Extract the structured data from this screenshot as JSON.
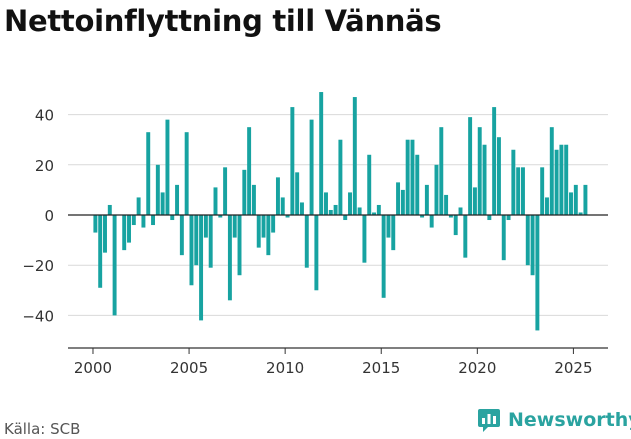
{
  "title": "Nettoinflyttning till Vännäs",
  "source": "Källa: SCB",
  "brand": {
    "name": "Newsworthy",
    "icon": "bar-chart-logo-icon"
  },
  "colors": {
    "bar": "#17a3a1",
    "grid": "#d9d9d9",
    "zero_line": "#222222",
    "axis": "#333333",
    "tick_text": "#333333"
  },
  "chart_data": {
    "type": "bar",
    "title": "Nettoinflyttning till Vännäs",
    "xlabel": "",
    "ylabel": "",
    "xlim": [
      1998.7,
      2026.8
    ],
    "ylim": [
      -53,
      53
    ],
    "x_ticks": [
      2000,
      2005,
      2010,
      2015,
      2020,
      2025
    ],
    "x_tick_labels": [
      "2000",
      "2005",
      "2010",
      "2015",
      "2020",
      "2025"
    ],
    "y_ticks": [
      -40,
      -20,
      0,
      20,
      40
    ],
    "y_tick_labels": [
      "−40",
      "−20",
      "0",
      "20",
      "40"
    ],
    "grid": true,
    "period": "quarterly",
    "x": [
      2000.125,
      2000.375,
      2000.625,
      2000.875,
      2001.125,
      2001.375,
      2001.625,
      2001.875,
      2002.125,
      2002.375,
      2002.625,
      2002.875,
      2003.125,
      2003.375,
      2003.625,
      2003.875,
      2004.125,
      2004.375,
      2004.625,
      2004.875,
      2005.125,
      2005.375,
      2005.625,
      2005.875,
      2006.125,
      2006.375,
      2006.625,
      2006.875,
      2007.125,
      2007.375,
      2007.625,
      2007.875,
      2008.125,
      2008.375,
      2008.625,
      2008.875,
      2009.125,
      2009.375,
      2009.625,
      2009.875,
      2010.125,
      2010.375,
      2010.625,
      2010.875,
      2011.125,
      2011.375,
      2011.625,
      2011.875,
      2012.125,
      2012.375,
      2012.625,
      2012.875,
      2013.125,
      2013.375,
      2013.625,
      2013.875,
      2014.125,
      2014.375,
      2014.625,
      2014.875,
      2015.125,
      2015.375,
      2015.625,
      2015.875,
      2016.125,
      2016.375,
      2016.625,
      2016.875,
      2017.125,
      2017.375,
      2017.625,
      2017.875,
      2018.125,
      2018.375,
      2018.625,
      2018.875,
      2019.125,
      2019.375,
      2019.625,
      2019.875,
      2020.125,
      2020.375,
      2020.625,
      2020.875,
      2021.125,
      2021.375,
      2021.625,
      2021.875,
      2022.125,
      2022.375,
      2022.625,
      2022.875,
      2023.125,
      2023.375,
      2023.625,
      2023.875,
      2024.125,
      2024.375,
      2024.625,
      2024.875,
      2025.125,
      2025.375,
      2025.625
    ],
    "values": [
      -7,
      -29,
      -15,
      4,
      -40,
      0,
      -14,
      -11,
      -4,
      7,
      -5,
      33,
      -4,
      20,
      9,
      38,
      -2,
      12,
      -16,
      33,
      -28,
      -20,
      -42,
      -9,
      -21,
      11,
      -1,
      19,
      -34,
      -9,
      -24,
      18,
      35,
      12,
      -13,
      -9,
      -16,
      -7,
      15,
      7,
      -1,
      43,
      17,
      5,
      -21,
      38,
      -30,
      49,
      9,
      2,
      4,
      30,
      -2,
      9,
      47,
      3,
      -19,
      24,
      1,
      4,
      -33,
      -9,
      -14,
      13,
      10,
      30,
      30,
      24,
      -1,
      12,
      -5,
      20,
      35,
      8,
      -1,
      -8,
      3,
      -17,
      39,
      11,
      35,
      28,
      -2,
      43,
      31,
      -18,
      -2,
      26,
      19,
      19,
      -20,
      -24,
      -46,
      19,
      7,
      35,
      26,
      28,
      28,
      9,
      12,
      1,
      12
    ]
  }
}
